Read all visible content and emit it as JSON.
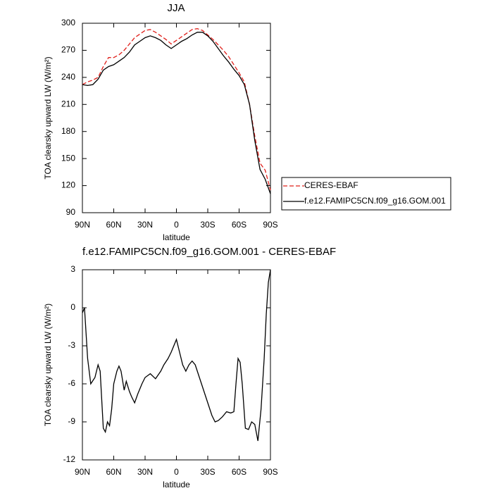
{
  "chart_data": [
    {
      "type": "line",
      "title": "JJA",
      "x_label": "latitude",
      "y_label": "TOA clearsky upward LW (W/m²)",
      "x": [
        90,
        85,
        80,
        75,
        70,
        65,
        60,
        55,
        50,
        45,
        40,
        35,
        30,
        25,
        20,
        15,
        10,
        5,
        0,
        -5,
        -10,
        -15,
        -20,
        -25,
        -30,
        -35,
        -40,
        -45,
        -50,
        -55,
        -60,
        -65,
        -70,
        -75,
        -80,
        -85,
        -90
      ],
      "xlim": [
        90,
        -90
      ],
      "xticks": [
        {
          "value": 90,
          "label": "90N"
        },
        {
          "value": 60,
          "label": "60N"
        },
        {
          "value": 30,
          "label": "30N"
        },
        0,
        {
          "value": -30,
          "label": "30S"
        },
        {
          "value": -60,
          "label": "60S"
        },
        {
          "value": -90,
          "label": "90S"
        }
      ],
      "ylim": [
        90,
        300
      ],
      "yticks": [
        90,
        120,
        150,
        180,
        210,
        240,
        270,
        300
      ],
      "legend": "right",
      "series": [
        {
          "name": "CERES-EBAF",
          "color": "#e0201b",
          "dashed": true,
          "values": [
            232,
            235,
            237,
            240,
            252,
            262,
            262,
            265,
            270,
            277,
            284,
            288,
            292,
            293,
            290,
            286,
            282,
            277,
            281,
            285,
            289,
            293,
            294,
            292,
            287,
            282,
            276,
            270,
            263,
            254,
            245,
            235,
            210,
            175,
            145,
            137,
            115
          ]
        },
        {
          "name": "f.e12.FAMIPC5CN.f09_g16.GOM.001",
          "color": "#000000",
          "dashed": false,
          "values": [
            232,
            231,
            232,
            238,
            248,
            252,
            254,
            258,
            262,
            268,
            276,
            280,
            284,
            286,
            284,
            281,
            276,
            272,
            276,
            280,
            283,
            287,
            290,
            290,
            286,
            280,
            272,
            264,
            257,
            249,
            242,
            232,
            210,
            170,
            138,
            127,
            111
          ]
        }
      ]
    },
    {
      "type": "line",
      "title": "f.e12.FAMIPC5CN.f09_g16.GOM.001 - CERES-EBAF",
      "x_label": "latitude",
      "y_label": "TOA clearsky upward LW (W/m²)",
      "x": [
        90,
        88,
        85,
        82,
        78,
        75,
        73,
        70,
        68,
        66,
        64,
        62,
        60,
        57,
        55,
        53,
        50,
        48,
        45,
        43,
        40,
        37,
        33,
        30,
        25,
        20,
        15,
        12,
        8,
        5,
        0,
        -3,
        -6,
        -9,
        -12,
        -15,
        -18,
        -22,
        -26,
        -30,
        -34,
        -37,
        -40,
        -44,
        -48,
        -52,
        -55,
        -57,
        -59,
        -61,
        -63,
        -66,
        -69,
        -72,
        -75,
        -78,
        -81,
        -84,
        -86,
        -88,
        -90
      ],
      "xlim": [
        90,
        -90
      ],
      "xticks": [
        {
          "value": 90,
          "label": "90N"
        },
        {
          "value": 60,
          "label": "60N"
        },
        {
          "value": 30,
          "label": "30N"
        },
        0,
        {
          "value": -30,
          "label": "30S"
        },
        {
          "value": -60,
          "label": "60S"
        },
        {
          "value": -90,
          "label": "90S"
        }
      ],
      "ylim": [
        -12,
        3
      ],
      "yticks": [
        -12,
        -9,
        -6,
        -3,
        0,
        3
      ],
      "series": [
        {
          "color": "#000000",
          "dashed": false,
          "values": [
            -0.4,
            0,
            -4,
            -6,
            -5.5,
            -4.5,
            -5,
            -9.5,
            -9.8,
            -9,
            -9.3,
            -8,
            -6,
            -5,
            -4.6,
            -5,
            -6.5,
            -5.8,
            -6.6,
            -7,
            -7.5,
            -6.8,
            -6,
            -5.5,
            -5.2,
            -5.6,
            -5,
            -4.5,
            -4,
            -3.5,
            -2.5,
            -3.5,
            -4.5,
            -5,
            -4.5,
            -4.2,
            -4.5,
            -5.5,
            -6.5,
            -7.5,
            -8.5,
            -9,
            -8.9,
            -8.6,
            -8.2,
            -8.3,
            -8.2,
            -6,
            -4,
            -4.3,
            -6,
            -9.5,
            -9.6,
            -9,
            -9.2,
            -10.5,
            -8,
            -4,
            -0.5,
            2,
            3
          ]
        }
      ]
    }
  ]
}
